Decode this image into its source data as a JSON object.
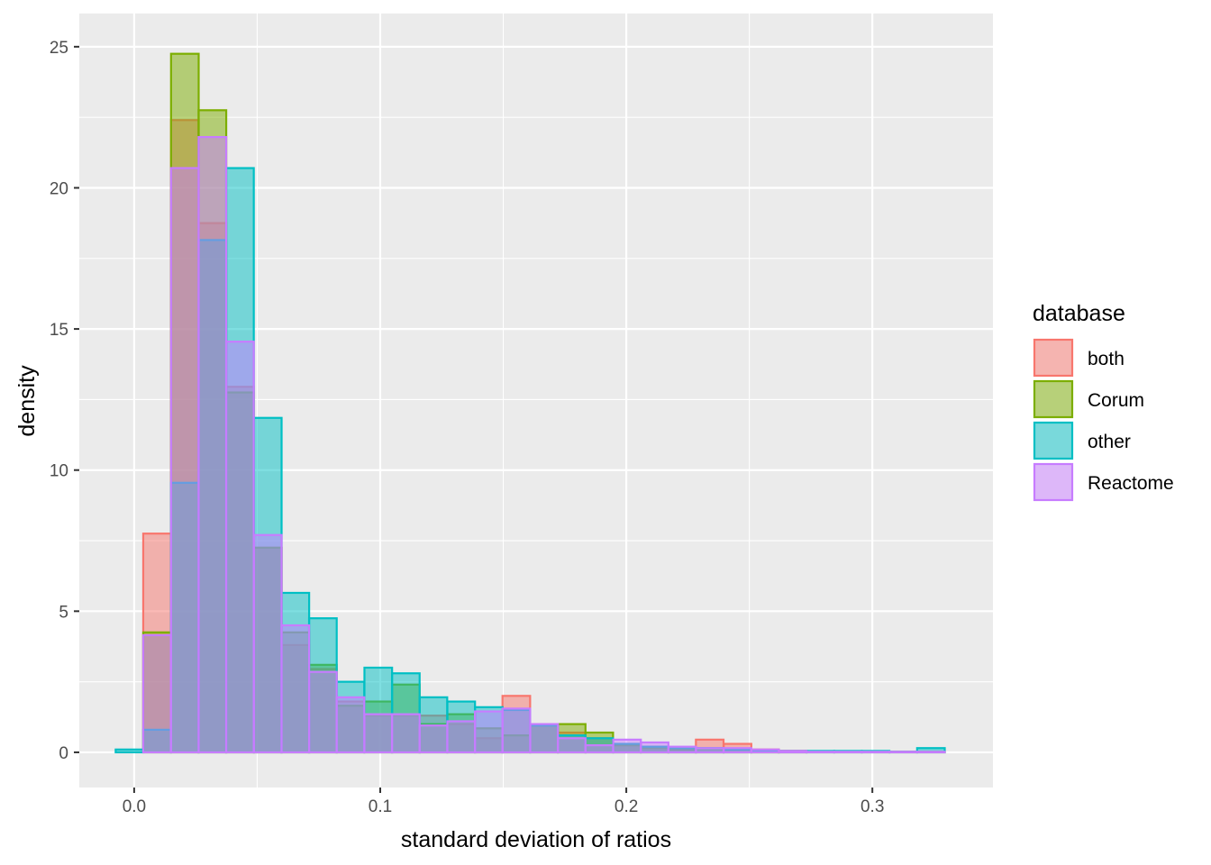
{
  "chart_data": {
    "type": "bar",
    "subtype": "overlaid-histogram",
    "title": "",
    "xlabel": "standard deviation of ratios",
    "ylabel": "density",
    "xlim": [
      -0.0223,
      0.349
    ],
    "ylim": [
      -1.2465,
      26.1765
    ],
    "x_ticks": [
      0.0,
      0.1,
      0.2,
      0.3
    ],
    "x_tick_labels": [
      "0.0",
      "0.1",
      "0.2",
      "0.3"
    ],
    "y_ticks": [
      0,
      5,
      10,
      15,
      20,
      25
    ],
    "y_tick_labels": [
      "0",
      "5",
      "10",
      "15",
      "20",
      "25"
    ],
    "grid": true,
    "bin_width": 0.01123,
    "bin_centers": [
      -0.0019,
      0.0093,
      0.0206,
      0.0318,
      0.043,
      0.0543,
      0.0655,
      0.0767,
      0.0879,
      0.0992,
      0.1104,
      0.1216,
      0.1329,
      0.1441,
      0.1553,
      0.1666,
      0.1778,
      0.189,
      0.2003,
      0.2115,
      0.2227,
      0.2339,
      0.2452,
      0.2564,
      0.2676,
      0.2789,
      0.2901,
      0.3013,
      0.3126,
      0.3238
    ],
    "legend": {
      "title": "database",
      "position": "right"
    },
    "series": [
      {
        "name": "both",
        "color": "#F8766D",
        "values": [
          0,
          7.75,
          22.4,
          18.75,
          12.95,
          7.25,
          3.8,
          2.95,
          1.8,
          1.3,
          1.3,
          1.3,
          1.0,
          0.5,
          2.0,
          1.0,
          0.7,
          0.5,
          0.25,
          0.2,
          0.1,
          0.45,
          0.3,
          0.1,
          0.05,
          0,
          0,
          0,
          0,
          0
        ]
      },
      {
        "name": "Corum",
        "color": "#7CAE00",
        "values": [
          0,
          4.25,
          24.75,
          22.75,
          12.75,
          7.25,
          4.25,
          3.1,
          1.65,
          1.8,
          2.4,
          1.0,
          1.35,
          0.85,
          0.6,
          0.95,
          1.0,
          0.7,
          0.25,
          0.15,
          0.1,
          0.15,
          0.1,
          0.05,
          0.05,
          0.02,
          0.02,
          0.02,
          0.02,
          0.02
        ]
      },
      {
        "name": "other",
        "color": "#00BFC4",
        "values": [
          0.1,
          0.8,
          9.55,
          18.15,
          20.7,
          11.85,
          5.65,
          4.75,
          2.5,
          3.0,
          2.8,
          1.95,
          1.8,
          1.6,
          1.5,
          0.95,
          0.6,
          0.5,
          0.3,
          0.2,
          0.15,
          0.15,
          0.1,
          0.05,
          0.05,
          0.05,
          0.05,
          0.05,
          0.02,
          0.15
        ]
      },
      {
        "name": "Reactome",
        "color": "#C77CFF",
        "values": [
          0,
          4.15,
          20.7,
          21.8,
          14.55,
          7.7,
          4.5,
          2.85,
          1.95,
          1.35,
          1.35,
          0.95,
          1.1,
          1.45,
          1.55,
          1.0,
          0.5,
          0.25,
          0.45,
          0.35,
          0.2,
          0.15,
          0.15,
          0.1,
          0.05,
          0.02,
          0.02,
          0.02,
          0.02,
          0.02
        ]
      }
    ]
  }
}
